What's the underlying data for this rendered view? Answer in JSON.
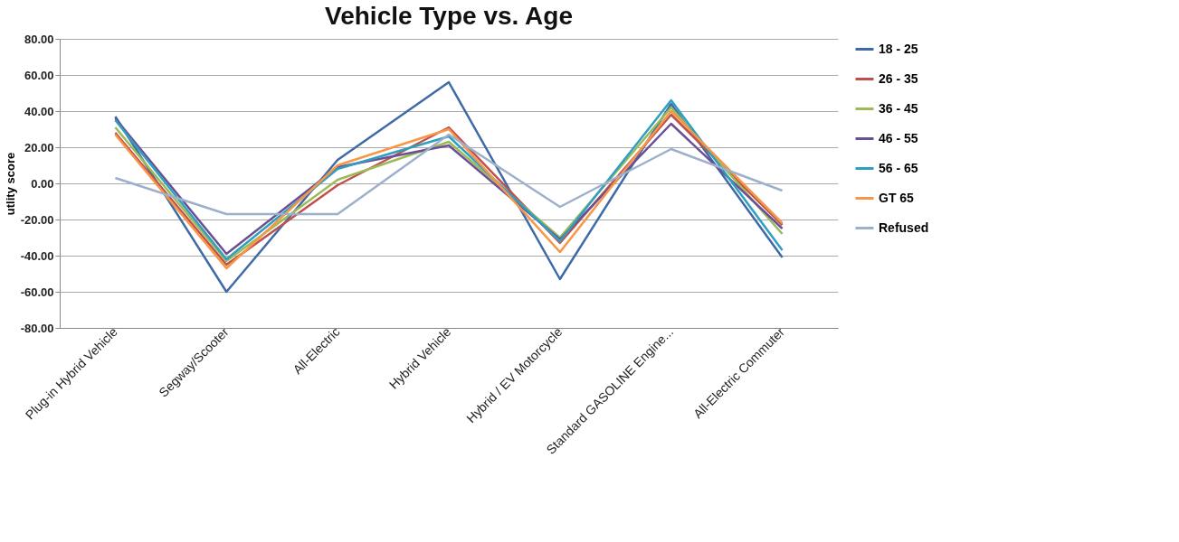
{
  "chart_data": {
    "type": "line",
    "title": "Vehicle Type vs. Age",
    "ylabel": "utlity score",
    "categories": [
      "Plug-in Hybrid Vehicle",
      "Segway/Scooter",
      "All-Electric",
      "Hybrid Vehicle",
      "Hybrid / EV Motorcycle",
      "Standard GASOLINE Engine...",
      "All-Electric Commuter"
    ],
    "series": [
      {
        "name": "18 - 25",
        "color": "#3f6aa8",
        "values": [
          37,
          -60,
          13,
          56,
          -53,
          44,
          -41
        ]
      },
      {
        "name": "26 - 35",
        "color": "#c0504d",
        "values": [
          28,
          -45,
          -1,
          31,
          -33,
          38,
          -23
        ]
      },
      {
        "name": "36 - 45",
        "color": "#9bbb59",
        "values": [
          31,
          -43,
          2,
          23,
          -30,
          42,
          -28
        ]
      },
      {
        "name": "46 - 55",
        "color": "#6a4f95",
        "values": [
          36,
          -39,
          9,
          21,
          -31,
          33,
          -25
        ]
      },
      {
        "name": "56 - 65",
        "color": "#2f9fc0",
        "values": [
          35,
          -42,
          8,
          26,
          -32,
          46,
          -37
        ]
      },
      {
        "name": "GT 65",
        "color": "#f79646",
        "values": [
          27,
          -47,
          10,
          30,
          -38,
          40,
          -22
        ]
      },
      {
        "name": "Refused",
        "color": "#9cb0cc",
        "values": [
          3,
          -17,
          -17,
          27,
          -13,
          19,
          -4
        ]
      }
    ],
    "ylim": [
      -80,
      80
    ],
    "yticks": [
      {
        "value": -80,
        "label": "-80.00"
      },
      {
        "value": -60,
        "label": "-60.00"
      },
      {
        "value": -40,
        "label": "-40.00"
      },
      {
        "value": -20,
        "label": "-20.00"
      },
      {
        "value": 0,
        "label": "0.00"
      },
      {
        "value": 20,
        "label": "20.00"
      },
      {
        "value": 40,
        "label": "40.00"
      },
      {
        "value": 60,
        "label": "60.00"
      },
      {
        "value": 80,
        "label": "80.00"
      }
    ],
    "grid": "y",
    "legend": "right",
    "marker": "none",
    "line_style": "solid"
  }
}
